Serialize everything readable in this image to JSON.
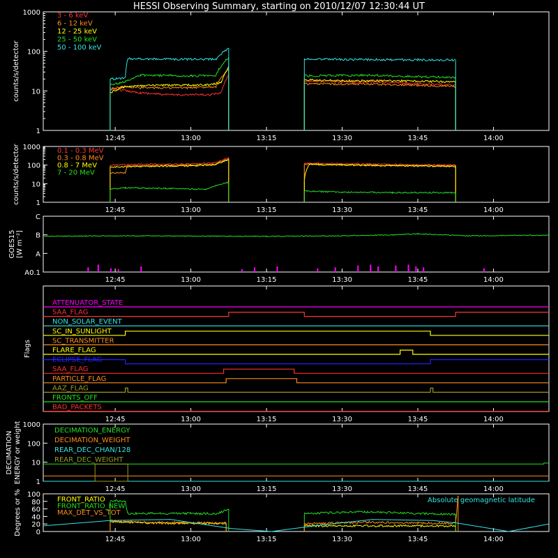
{
  "title": "HESSI Observing Summary, starting on 2010/12/07 12:30:44 UT",
  "time_axis": {
    "start": "12:30:44",
    "end": "14:11:00",
    "ticks": [
      "12:45",
      "13:00",
      "13:15",
      "13:30",
      "13:45",
      "14:00"
    ]
  },
  "colors": {
    "red": "#ff3030",
    "orange": "#ff8c1a",
    "yellow": "#ffff00",
    "green": "#22e022",
    "cyan": "#33e6e6",
    "magenta": "#ff00ff",
    "blue": "#2020ff",
    "olive": "#9a9a22",
    "white": "#ffffff"
  },
  "chart_data": [
    {
      "type": "line",
      "panel": "lightcurve",
      "ylabel": "counts/s/detector",
      "yscale": "log",
      "ylim": [
        1,
        1000
      ],
      "yticks": [
        "1",
        "10",
        "100",
        "1000"
      ],
      "series": [
        {
          "name": "3 - 6 keV",
          "color": "red",
          "segments": [
            {
              "x": [
                "12:44:00",
                "12:45:00",
                "12:50:00",
                "12:55:00",
                "13:00:00",
                "13:04:00",
                "13:06:00",
                "13:07:30"
              ],
              "y": [
                12,
                11,
                9,
                8,
                8,
                8,
                9,
                25
              ]
            },
            {
              "x": [
                "13:22:30",
                "13:30:00",
                "13:38:00",
                "13:45:00",
                "13:52:30"
              ],
              "y": [
                18,
                17,
                17,
                15,
                14
              ]
            }
          ]
        },
        {
          "name": "6 - 12 keV",
          "color": "orange",
          "segments": [
            {
              "x": [
                "12:44:00",
                "12:47:00",
                "12:50:00",
                "13:00:00",
                "13:05:00",
                "13:07:30"
              ],
              "y": [
                11,
                13,
                12,
                12,
                13,
                35
              ]
            },
            {
              "x": [
                "13:22:30",
                "13:35:00",
                "13:45:00",
                "13:52:30"
              ],
              "y": [
                15,
                15,
                14,
                13
              ]
            }
          ]
        },
        {
          "name": "12 - 25 keV",
          "color": "yellow",
          "segments": [
            {
              "x": [
                "12:44:00",
                "12:47:00",
                "12:55:00",
                "13:03:00",
                "13:06:00",
                "13:07:30"
              ],
              "y": [
                9,
                13,
                14,
                14,
                16,
                40
              ]
            },
            {
              "x": [
                "13:22:30",
                "13:30:00",
                "13:40:00",
                "13:52:30"
              ],
              "y": [
                19,
                18,
                18,
                17
              ]
            }
          ]
        },
        {
          "name": "25 - 50 keV",
          "color": "green",
          "segments": [
            {
              "x": [
                "12:44:00",
                "12:47:00",
                "12:50:00",
                "13:00:00",
                "13:05:00",
                "13:07:30"
              ],
              "y": [
                14,
                17,
                25,
                24,
                25,
                70
              ]
            },
            {
              "x": [
                "13:22:30",
                "13:35:00",
                "13:45:00",
                "13:52:30"
              ],
              "y": [
                24,
                25,
                23,
                22
              ]
            }
          ]
        },
        {
          "name": "50 - 100 keV",
          "color": "cyan",
          "segments": [
            {
              "x": [
                "12:44:00",
                "12:47:00",
                "12:47:30",
                "13:00:00",
                "13:05:00",
                "13:07:30"
              ],
              "y": [
                20,
                21,
                65,
                63,
                63,
                120
              ]
            },
            {
              "x": [
                "13:22:30",
                "13:35:00",
                "13:45:00",
                "13:52:30"
              ],
              "y": [
                64,
                62,
                61,
                60
              ]
            }
          ]
        }
      ]
    },
    {
      "type": "line",
      "panel": "gamma",
      "ylabel": "counts/s/detector",
      "yscale": "log",
      "ylim": [
        1,
        1000
      ],
      "yticks": [
        "1",
        "10",
        "100",
        "1000"
      ],
      "series": [
        {
          "name": "0.1 - 0.3 MeV",
          "color": "red",
          "segments": [
            {
              "x": [
                "12:44:00",
                "12:50:00",
                "13:00:00",
                "13:05:00",
                "13:07:30"
              ],
              "y": [
                100,
                110,
                115,
                130,
                250
              ]
            },
            {
              "x": [
                "13:22:30",
                "13:35:00",
                "13:45:00",
                "13:52:30"
              ],
              "y": [
                125,
                115,
                105,
                100
              ]
            }
          ]
        },
        {
          "name": "0.3 - 0.8 MeV",
          "color": "orange",
          "segments": [
            {
              "x": [
                "12:44:00",
                "12:47:00",
                "12:47:30",
                "13:00:00",
                "13:05:00",
                "13:07:30"
              ],
              "y": [
                38,
                38,
                90,
                100,
                110,
                220
              ]
            },
            {
              "x": [
                "13:22:30",
                "13:35:00",
                "13:52:30"
              ],
              "y": [
                110,
                100,
                90
              ]
            }
          ]
        },
        {
          "name": "0.8 - 7 MeV",
          "color": "yellow",
          "segments": [
            {
              "x": [
                "12:44:00",
                "12:50:00",
                "13:00:00",
                "13:05:00",
                "13:07:30"
              ],
              "y": [
                80,
                85,
                90,
                105,
                200
              ]
            },
            {
              "x": [
                "13:22:30",
                "13:23:30",
                "13:35:00",
                "13:52:30"
              ],
              "y": [
                14,
                110,
                95,
                85
              ]
            }
          ]
        },
        {
          "name": "7 - 20 MeV",
          "color": "green",
          "segments": [
            {
              "x": [
                "12:44:00",
                "12:47:00",
                "12:55:00",
                "13:03:00",
                "13:07:30"
              ],
              "y": [
                5,
                6,
                5.5,
                5,
                12
              ]
            },
            {
              "x": [
                "13:22:30",
                "13:30:00",
                "13:40:00",
                "13:52:30"
              ],
              "y": [
                4,
                3.5,
                3.3,
                3.3
              ]
            }
          ]
        }
      ]
    },
    {
      "type": "line",
      "panel": "goes",
      "ylabel": "GOES15 [W m⁻²]",
      "yticks": [
        "A0.1",
        "A",
        "B",
        "C"
      ],
      "series": [
        {
          "name": "GOES15",
          "color": "green",
          "x": [
            "12:30:44",
            "12:45:00",
            "13:00:00",
            "13:15:00",
            "13:30:00",
            "13:40:00",
            "13:45:00",
            "13:55:00",
            "14:11:00"
          ],
          "level": [
            1.92,
            1.95,
            1.93,
            1.92,
            1.95,
            2.0,
            2.05,
            1.95,
            1.98
          ]
        }
      ],
      "events": {
        "color": "magenta",
        "x": [
          "12:39:30",
          "12:41:30",
          "12:44:00",
          "12:45:30",
          "12:50:00",
          "13:10:00",
          "13:12:30",
          "13:17:00",
          "13:25:00",
          "13:28:30",
          "13:33:00",
          "13:35:30",
          "13:37:00",
          "13:40:30",
          "13:43:00",
          "13:44:30",
          "13:46:00",
          "13:58:00"
        ],
        "level": [
          0.25,
          0.4,
          0.2,
          0.15,
          0.3,
          0.15,
          0.25,
          0.3,
          0.2,
          0.25,
          0.35,
          0.4,
          0.3,
          0.35,
          0.4,
          0.3,
          0.25,
          0.2
        ]
      }
    },
    {
      "type": "line",
      "panel": "flags",
      "ylabel": "Flags",
      "series": [
        {
          "name": "ATTENUATOR_STATE",
          "color": "magenta",
          "states": [
            {
              "x": "12:30:44",
              "on": 0
            }
          ]
        },
        {
          "name": "SAA_FLAG",
          "color": "red",
          "states": [
            {
              "x": "12:30:44",
              "on": 0
            },
            {
              "x": "13:07:30",
              "on": 1
            },
            {
              "x": "13:22:30",
              "on": 0
            },
            {
              "x": "13:52:30",
              "on": 1
            }
          ]
        },
        {
          "name": "NON_SOLAR_EVENT",
          "color": "cyan",
          "states": [
            {
              "x": "12:30:44",
              "on": 0
            }
          ]
        },
        {
          "name": "SC_IN_SUNLIGHT",
          "color": "yellow",
          "states": [
            {
              "x": "12:30:44",
              "on": 0
            },
            {
              "x": "12:47:00",
              "on": 1
            },
            {
              "x": "13:47:30",
              "on": 0
            }
          ]
        },
        {
          "name": "SC_TRANSMITTER",
          "color": "orange",
          "states": [
            {
              "x": "12:30:44",
              "on": 0
            }
          ]
        },
        {
          "name": "FLARE_FLAG",
          "color": "yellow",
          "states": [
            {
              "x": "12:30:44",
              "on": 0
            },
            {
              "x": "13:41:30",
              "on": 1
            },
            {
              "x": "13:44:00",
              "on": 0
            }
          ]
        },
        {
          "name": "ECLIPSE_FLAG",
          "color": "blue",
          "states": [
            {
              "x": "12:30:44",
              "on": 1
            },
            {
              "x": "12:47:00",
              "on": 0
            },
            {
              "x": "13:47:30",
              "on": 1
            }
          ]
        },
        {
          "name": "SAA_FLAG",
          "color": "red",
          "states": [
            {
              "x": "12:30:44",
              "on": 0
            },
            {
              "x": "13:06:30",
              "on": 1
            },
            {
              "x": "13:20:30",
              "on": 0
            }
          ]
        },
        {
          "name": "PARTICLE_FLAG",
          "color": "orange",
          "states": [
            {
              "x": "12:30:44",
              "on": 0
            },
            {
              "x": "13:07:00",
              "on": 1
            },
            {
              "x": "13:21:00",
              "on": 0
            }
          ]
        },
        {
          "name": "AAZ_FLAG",
          "color": "olive",
          "states": [
            {
              "x": "12:30:44",
              "on": 0
            },
            {
              "x": "12:47:00",
              "on": 1
            },
            {
              "x": "12:47:30",
              "on": 0
            },
            {
              "x": "13:47:30",
              "on": 1
            },
            {
              "x": "13:48:00",
              "on": 0
            }
          ]
        },
        {
          "name": "FRONTS_OFF",
          "color": "green",
          "states": [
            {
              "x": "12:30:44",
              "on": 0
            }
          ]
        },
        {
          "name": "BAD_PACKETS",
          "color": "red",
          "states": [
            {
              "x": "12:30:44",
              "on": 0
            }
          ]
        }
      ]
    },
    {
      "type": "line",
      "panel": "decimation",
      "ylabel": "DECIMATION ENERGY or weight",
      "yscale": "log",
      "ylim": [
        1,
        1000
      ],
      "yticks": [
        "1",
        "10",
        "100",
        "1000"
      ],
      "series": [
        {
          "name": "DECIMATION_ENERGY",
          "color": "green",
          "x": [
            "12:30:44",
            "14:10:00",
            "14:10:00",
            "14:11:00"
          ],
          "y": [
            8,
            8,
            9,
            9
          ]
        },
        {
          "name": "DECIMATION_WEIGHT",
          "color": "orange",
          "x": [
            "12:30:44",
            "14:11:00"
          ],
          "y": [
            1.9,
            1.9
          ]
        },
        {
          "name": "REAR_DEC_CHAN/128",
          "color": "cyan",
          "x": [
            "12:30:44",
            "14:11:00"
          ],
          "y": [
            1,
            1
          ]
        },
        {
          "name": "REAR_DEC_WEIGHT",
          "color": "olive",
          "box": {
            "x": [
              "12:41:00",
              "12:47:30"
            ],
            "y": [
              1,
              8
            ]
          }
        }
      ]
    },
    {
      "type": "line",
      "panel": "ratio",
      "ylabel": "Degrees or %",
      "ylim": [
        0,
        100
      ],
      "yticks": [
        "0",
        "20",
        "40",
        "60",
        "80",
        "100"
      ],
      "annotation": "Absolute geomagnetic latitude",
      "series": [
        {
          "name": "FRONT_RATIO",
          "color": "yellow",
          "segments": [
            {
              "x": [
                "12:44:00",
                "12:47:00",
                "12:55:00",
                "13:05:00",
                "13:07:00"
              ],
              "y": [
                28,
                25,
                22,
                22,
                22
              ]
            },
            {
              "x": [
                "13:22:30",
                "13:35:00",
                "13:52:30"
              ],
              "y": [
                15,
                15,
                15
              ]
            }
          ]
        },
        {
          "name": "FRONT_RATIO_NEW",
          "color": "green",
          "segments": [
            {
              "x": [
                "12:44:00",
                "12:45:00",
                "12:47:00",
                "12:47:30",
                "13:00:00",
                "13:05:00",
                "13:07:30"
              ],
              "y": [
                80,
                82,
                80,
                48,
                48,
                47,
                60
              ]
            },
            {
              "x": [
                "13:22:30",
                "13:35:00",
                "13:45:00",
                "13:52:30"
              ],
              "y": [
                48,
                52,
                48,
                45
              ]
            }
          ]
        },
        {
          "name": "MAX_DET_VS_TOT",
          "color": "orange",
          "segments": [
            {
              "x": [
                "12:44:00",
                "12:48:00",
                "12:55:00",
                "13:05:00",
                "13:07:00"
              ],
              "y": [
                28,
                25,
                24,
                22,
                22
              ]
            },
            {
              "x": [
                "13:22:30",
                "13:35:00",
                "13:45:00",
                "13:52:30",
                "13:53:00"
              ],
              "y": [
                20,
                25,
                22,
                22,
                95
              ]
            }
          ]
        },
        {
          "name": "Absolute geomagnetic latitude",
          "color": "cyan",
          "x": [
            "12:30:44",
            "12:44:00",
            "12:56:00",
            "13:08:00",
            "13:16:00",
            "13:24:00",
            "13:36:00",
            "13:48:00",
            "13:53:00",
            "14:03:00",
            "14:11:00"
          ],
          "y": [
            15,
            29,
            32,
            8,
            0,
            14,
            32,
            29,
            22,
            0,
            20
          ]
        }
      ]
    }
  ]
}
